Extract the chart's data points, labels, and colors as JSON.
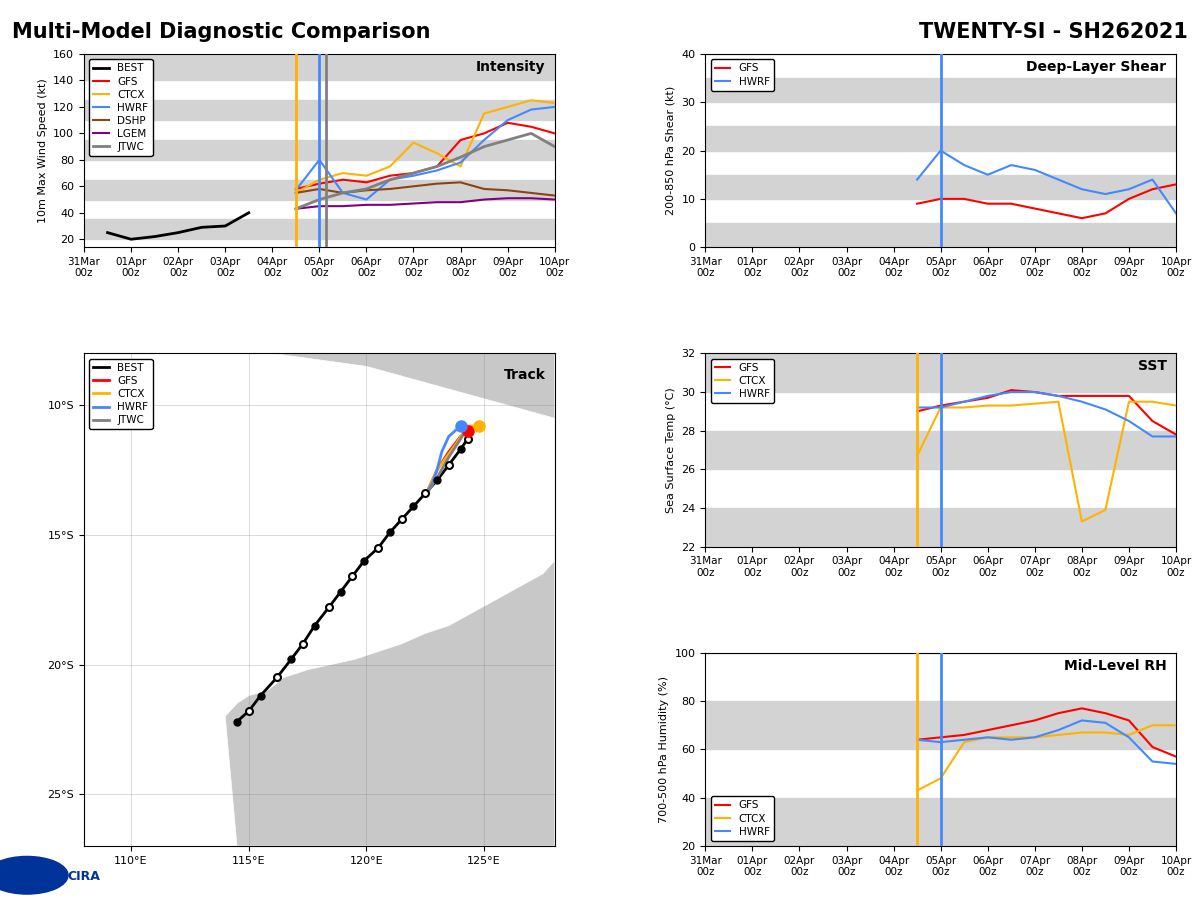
{
  "title_left": "Multi-Model Diagnostic Comparison",
  "title_right": "TWENTY-SI - SH262021",
  "band_color": "#d3d3d3",
  "time_labels": [
    "31Mar\n00z",
    "01Apr\n00z",
    "02Apr\n00z",
    "03Apr\n00z",
    "04Apr\n00z",
    "05Apr\n00z",
    "06Apr\n00z",
    "07Apr\n00z",
    "08Apr\n00z",
    "09Apr\n00z",
    "10Apr\n00z"
  ],
  "time_ticks": [
    0,
    1,
    2,
    3,
    4,
    5,
    6,
    7,
    8,
    9,
    10
  ],
  "intensity_vline_yellow": 4.5,
  "intensity_vline_blue": 5.0,
  "intensity_vline_gray": 5.15,
  "intensity_BEST": [
    null,
    25,
    20,
    22,
    25,
    29,
    30,
    40,
    null,
    null,
    null,
    null,
    null,
    null,
    null,
    null,
    null,
    null,
    null,
    null,
    null
  ],
  "intensity_GFS": [
    null,
    null,
    null,
    null,
    null,
    null,
    null,
    null,
    null,
    58,
    62,
    65,
    63,
    68,
    70,
    75,
    95,
    100,
    108,
    105,
    100
  ],
  "intensity_CTCX": [
    null,
    null,
    null,
    null,
    null,
    null,
    null,
    null,
    null,
    55,
    65,
    70,
    68,
    75,
    93,
    85,
    75,
    115,
    120,
    125,
    123
  ],
  "intensity_HWRF": [
    null,
    null,
    null,
    null,
    null,
    null,
    null,
    null,
    null,
    57,
    80,
    55,
    50,
    65,
    68,
    72,
    78,
    95,
    110,
    118,
    120
  ],
  "intensity_DSHP": [
    null,
    null,
    null,
    null,
    null,
    null,
    null,
    null,
    null,
    55,
    58,
    55,
    57,
    58,
    60,
    62,
    63,
    58,
    57,
    55,
    53
  ],
  "intensity_LGEM": [
    null,
    null,
    null,
    null,
    null,
    null,
    null,
    null,
    null,
    43,
    45,
    45,
    46,
    46,
    47,
    48,
    48,
    50,
    51,
    51,
    50
  ],
  "intensity_JTWC": [
    null,
    null,
    null,
    null,
    null,
    null,
    null,
    null,
    null,
    43,
    50,
    55,
    58,
    65,
    70,
    75,
    82,
    90,
    95,
    100,
    90
  ],
  "shear_vline_blue": 5.0,
  "shear_GFS": [
    null,
    null,
    null,
    null,
    null,
    null,
    null,
    null,
    null,
    9,
    10,
    10,
    9,
    9,
    8,
    7,
    6,
    7,
    10,
    12,
    13
  ],
  "shear_HWRF": [
    null,
    null,
    null,
    null,
    null,
    null,
    null,
    null,
    null,
    14,
    20,
    17,
    15,
    17,
    16,
    14,
    12,
    11,
    12,
    14,
    7
  ],
  "sst_vline_yellow": 4.5,
  "sst_vline_blue": 5.0,
  "sst_GFS": [
    null,
    null,
    null,
    null,
    null,
    null,
    null,
    null,
    null,
    29.0,
    29.3,
    29.5,
    29.7,
    30.1,
    30.0,
    29.8,
    29.8,
    29.8,
    29.8,
    28.5,
    27.8
  ],
  "sst_CTCX": [
    null,
    null,
    null,
    null,
    null,
    null,
    null,
    null,
    null,
    26.7,
    29.2,
    29.2,
    29.3,
    29.3,
    29.4,
    29.5,
    23.3,
    23.9,
    29.5,
    29.5,
    29.3
  ],
  "sst_HWRF": [
    null,
    null,
    null,
    null,
    null,
    null,
    null,
    null,
    null,
    29.2,
    29.2,
    29.5,
    29.8,
    30.0,
    30.0,
    29.8,
    29.5,
    29.1,
    28.5,
    27.7,
    27.7
  ],
  "rh_vline_yellow": 4.5,
  "rh_vline_blue": 5.0,
  "rh_GFS": [
    null,
    null,
    null,
    null,
    null,
    null,
    null,
    null,
    null,
    64,
    65,
    66,
    68,
    70,
    72,
    75,
    77,
    75,
    72,
    61,
    57
  ],
  "rh_CTCX": [
    null,
    null,
    null,
    null,
    null,
    null,
    null,
    null,
    null,
    43,
    48,
    63,
    65,
    65,
    65,
    66,
    67,
    67,
    66,
    70,
    70
  ],
  "rh_HWRF": [
    null,
    null,
    null,
    null,
    null,
    null,
    null,
    null,
    null,
    64,
    63,
    64,
    65,
    64,
    65,
    68,
    72,
    71,
    65,
    55,
    54
  ],
  "track_lon_BEST": [
    114.5,
    115.0,
    115.5,
    116.2,
    116.8,
    117.3,
    117.8,
    118.4,
    118.9,
    119.4,
    119.9,
    120.5,
    121.0,
    121.5,
    122.0,
    122.5,
    123.0,
    123.5,
    124.0,
    124.3
  ],
  "track_lat_BEST": [
    -22.2,
    -21.8,
    -21.2,
    -20.5,
    -19.8,
    -19.2,
    -18.5,
    -17.8,
    -17.2,
    -16.6,
    -16.0,
    -15.5,
    -14.9,
    -14.4,
    -13.9,
    -13.4,
    -12.9,
    -12.3,
    -11.7,
    -11.3
  ],
  "track_lon_GFS": [
    122.5,
    123.0,
    123.5,
    124.0,
    124.3
  ],
  "track_lat_GFS": [
    -13.5,
    -12.5,
    -11.8,
    -11.2,
    -11.0
  ],
  "track_lon_CTCX": [
    122.5,
    123.0,
    123.8,
    124.3,
    124.8
  ],
  "track_lat_CTCX": [
    -13.5,
    -12.5,
    -11.5,
    -10.8,
    -10.8
  ],
  "track_lon_HWRF": [
    122.5,
    122.8,
    123.0,
    123.2,
    123.5,
    124.0
  ],
  "track_lat_HWRF": [
    -13.5,
    -13.0,
    -12.5,
    -11.8,
    -11.2,
    -10.8
  ],
  "track_lon_JTWC": [
    122.5,
    123.0,
    123.5,
    124.0,
    124.2
  ],
  "track_lat_JTWC": [
    -13.5,
    -12.8,
    -12.0,
    -11.3,
    -11.0
  ],
  "map_land_color": "#c8c8c8",
  "map_ocean_color": "#ffffff"
}
